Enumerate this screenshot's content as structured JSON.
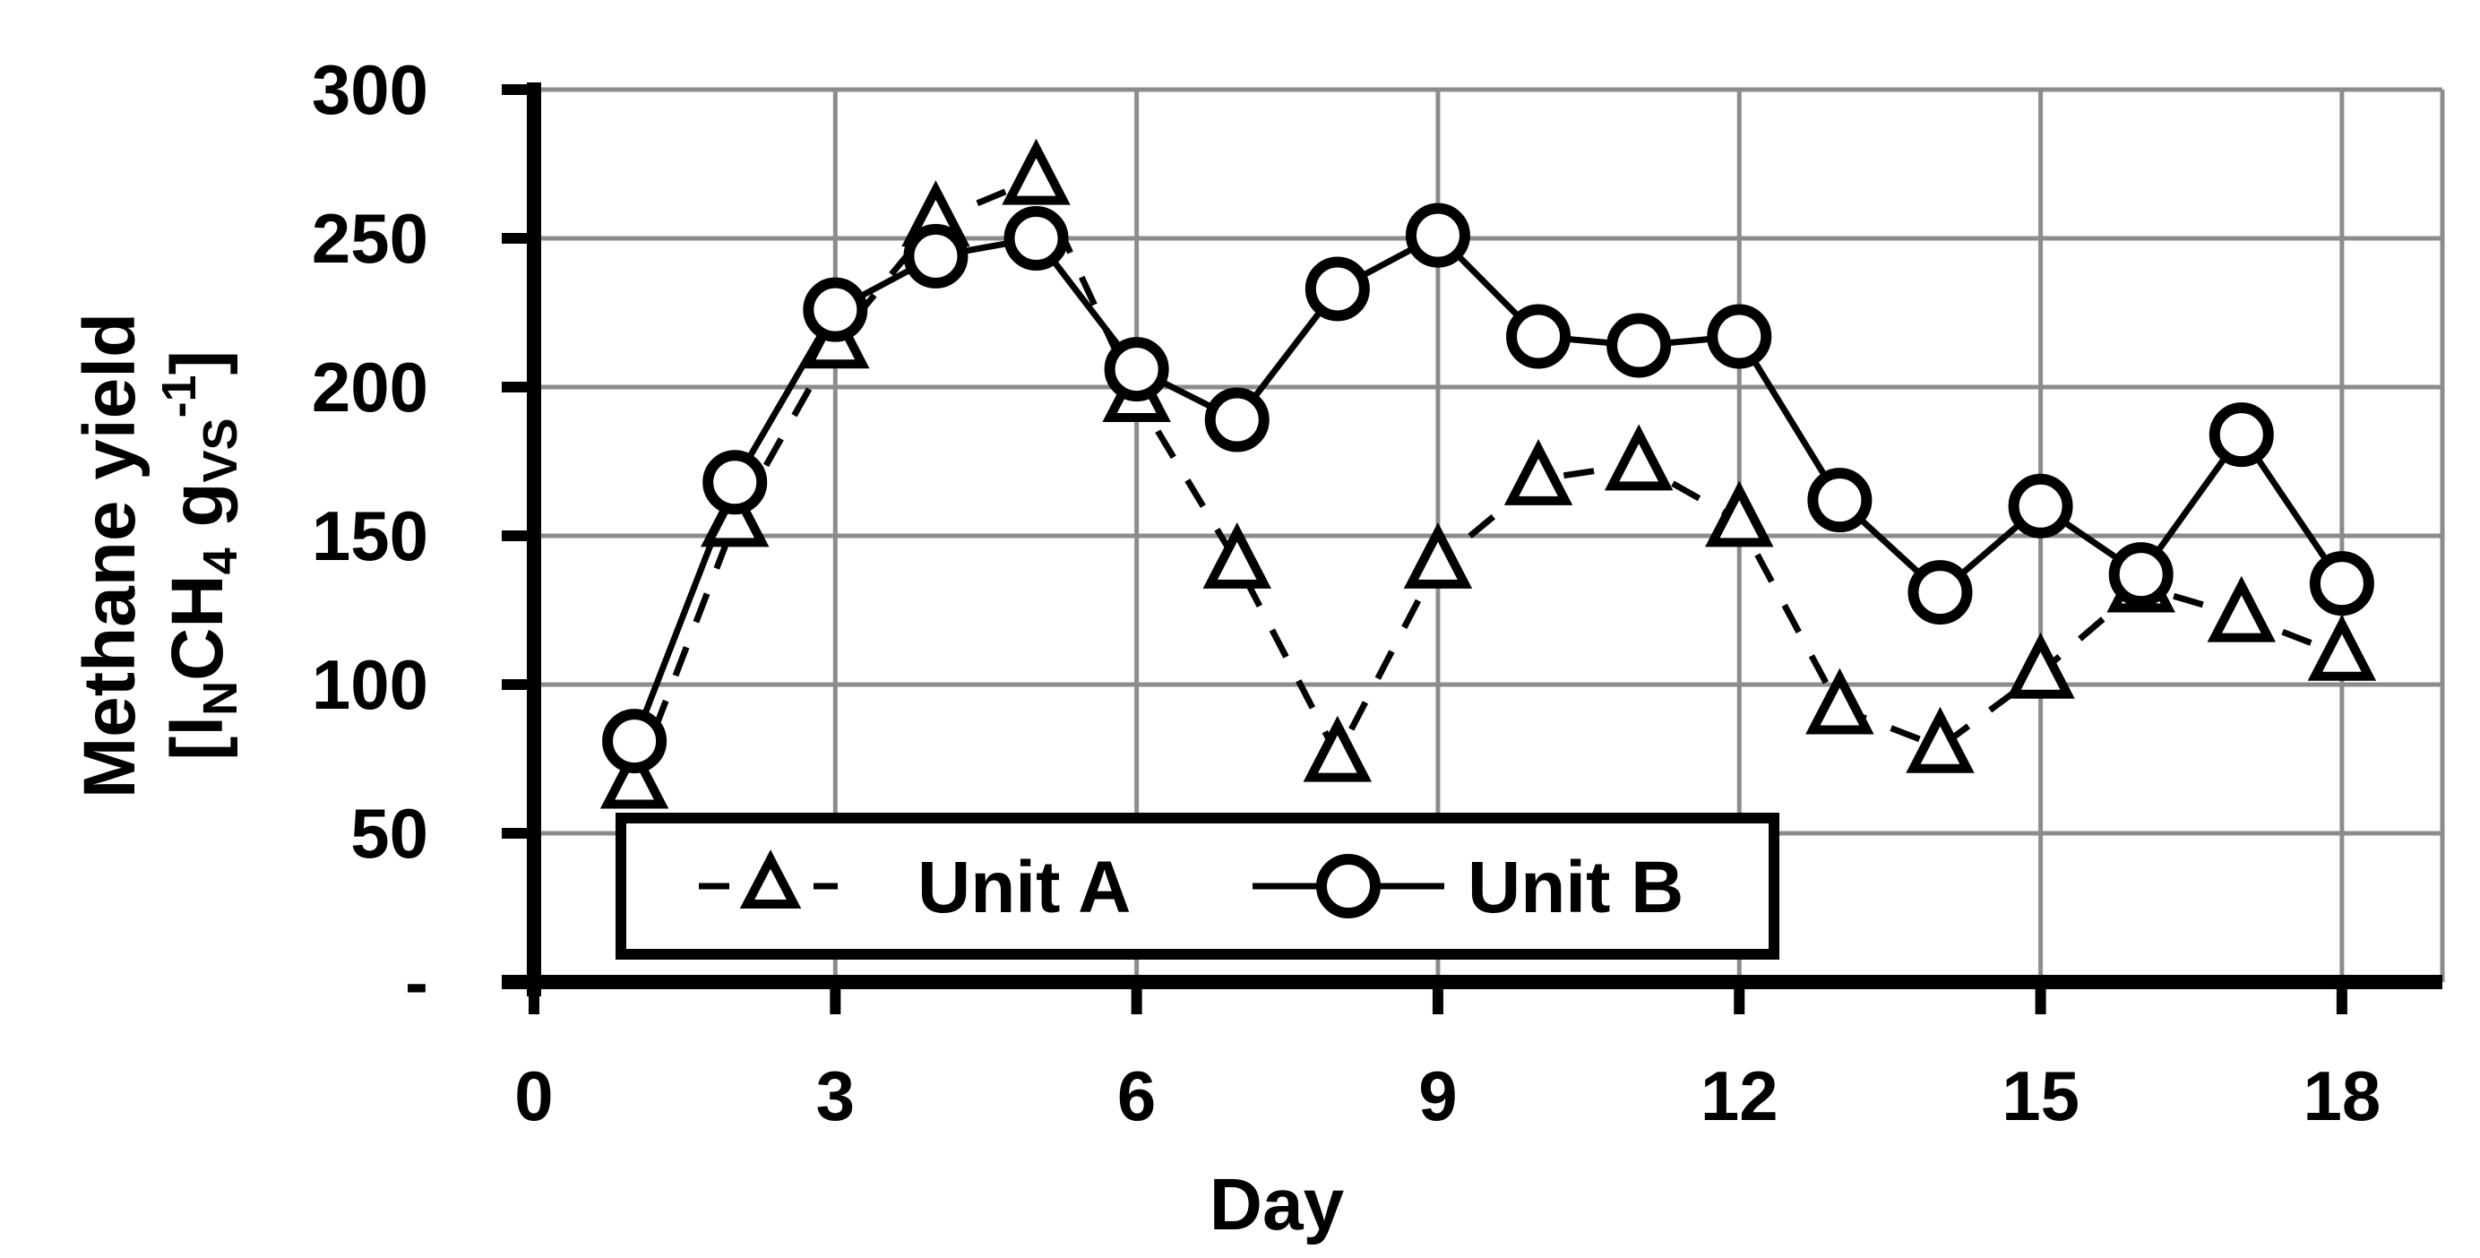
{
  "chart_data": {
    "type": "line",
    "x": [
      1,
      2,
      3,
      4,
      5,
      6,
      7,
      8,
      9,
      10,
      11,
      12,
      13,
      14,
      15,
      16,
      17,
      18
    ],
    "series": [
      {
        "name": "Unit A",
        "marker": "triangle",
        "line": "dashed",
        "values": [
          67,
          155,
          215,
          256,
          270,
          197,
          141,
          76,
          141,
          169,
          174,
          155,
          92,
          79,
          104,
          133,
          123,
          110
        ]
      },
      {
        "name": "Unit B",
        "marker": "circle",
        "line": "solid",
        "values": [
          81,
          168,
          226,
          244,
          250,
          206,
          189,
          233,
          251,
          217,
          214,
          217,
          162,
          131,
          160,
          137,
          184,
          134
        ]
      }
    ],
    "xlabel": "Day",
    "ylabel_line1": "Methane yield",
    "ylabel_line2": {
      "open": "[l",
      "sub1": "N",
      "mid": "CH",
      "sub2": "4",
      "g": " g",
      "sub3": "VS",
      "sup": "-1",
      "close": "]"
    },
    "xlim": [
      0,
      19
    ],
    "ylim": [
      0,
      300
    ],
    "x_ticks": [
      0,
      3,
      6,
      9,
      12,
      15,
      18
    ],
    "x_tick_labels": [
      "0",
      "3",
      "6",
      "9",
      "12",
      "15",
      "18"
    ],
    "y_ticks": [
      0,
      50,
      100,
      150,
      200,
      250,
      300
    ],
    "y_tick_labels": [
      "-",
      "50",
      "100",
      "150",
      "200",
      "250",
      "300"
    ],
    "grid": true,
    "legend_position": "bottom-left",
    "colors": {
      "line": "#000000",
      "grid": "#8c8c8c",
      "background": "#ffffff"
    }
  }
}
